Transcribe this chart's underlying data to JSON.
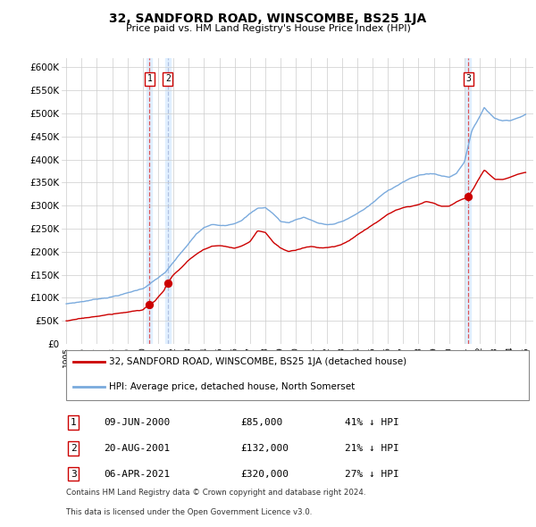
{
  "title": "32, SANDFORD ROAD, WINSCOMBE, BS25 1JA",
  "subtitle": "Price paid vs. HM Land Registry's House Price Index (HPI)",
  "legend_label_red": "32, SANDFORD ROAD, WINSCOMBE, BS25 1JA (detached house)",
  "legend_label_blue": "HPI: Average price, detached house, North Somerset",
  "transaction_labels": [
    {
      "num": 1,
      "date": "09-JUN-2000",
      "price": "£85,000",
      "pct": "41% ↓ HPI",
      "x_year": 2000.44,
      "y": 85000
    },
    {
      "num": 2,
      "date": "20-AUG-2001",
      "price": "£132,000",
      "pct": "21% ↓ HPI",
      "x_year": 2001.63,
      "y": 132000
    },
    {
      "num": 3,
      "date": "06-APR-2021",
      "price": "£320,000",
      "pct": "27% ↓ HPI",
      "x_year": 2021.26,
      "y": 320000
    }
  ],
  "footer_line1": "Contains HM Land Registry data © Crown copyright and database right 2024.",
  "footer_line2": "This data is licensed under the Open Government Licence v3.0.",
  "ylim": [
    0,
    620000
  ],
  "xlim_start": 1994.7,
  "xlim_end": 2025.5,
  "yticks": [
    0,
    50000,
    100000,
    150000,
    200000,
    250000,
    300000,
    350000,
    400000,
    450000,
    500000,
    550000,
    600000
  ],
  "ytick_labels": [
    "£0",
    "£50K",
    "£100K",
    "£150K",
    "£200K",
    "£250K",
    "£300K",
    "£350K",
    "£400K",
    "£450K",
    "£500K",
    "£550K",
    "£600K"
  ],
  "xticks": [
    1995,
    1996,
    1997,
    1998,
    1999,
    2000,
    2001,
    2002,
    2003,
    2004,
    2005,
    2006,
    2007,
    2008,
    2009,
    2010,
    2011,
    2012,
    2013,
    2014,
    2015,
    2016,
    2017,
    2018,
    2019,
    2020,
    2021,
    2022,
    2023,
    2024,
    2025
  ],
  "background_color": "#ffffff",
  "grid_color": "#cccccc",
  "red_color": "#cc0000",
  "blue_color": "#7aaadd",
  "vline_shade_color": "#ddeeff",
  "trans1_vline_color": "#dd4444",
  "trans2_vline_color": "#aabbdd"
}
